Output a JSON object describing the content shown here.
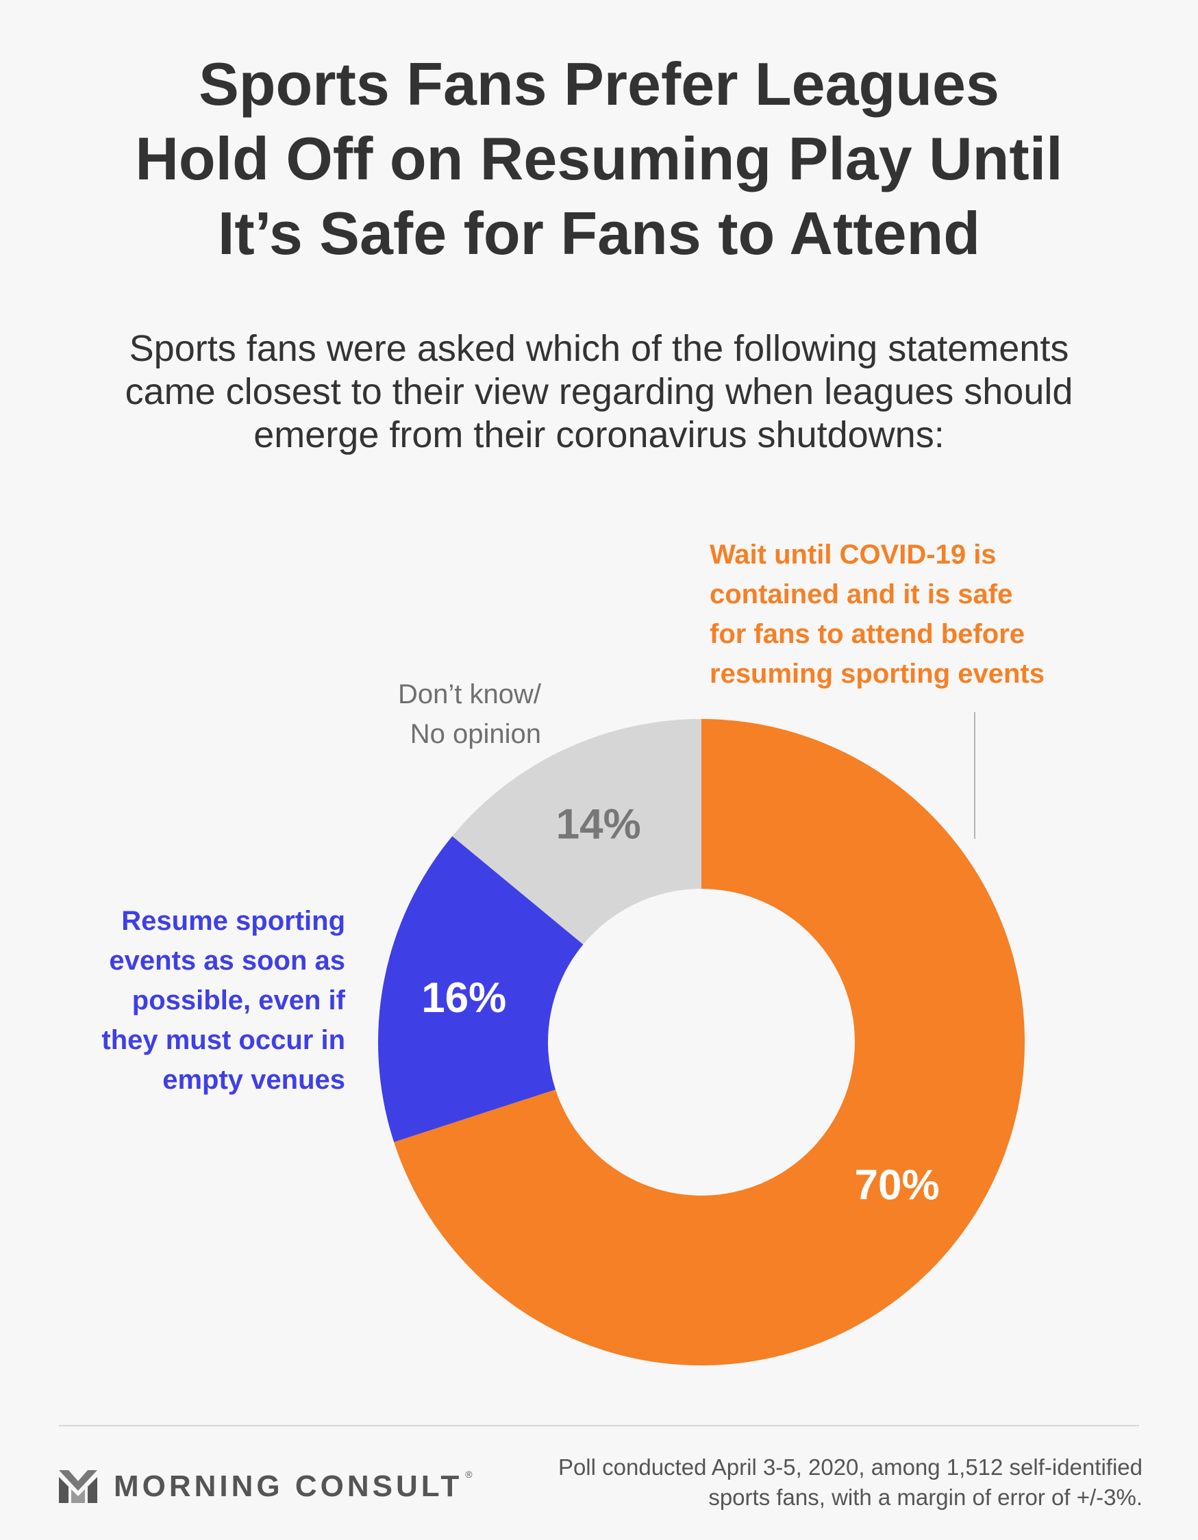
{
  "title_lines": [
    "Sports Fans Prefer Leagues",
    "Hold Off on Resuming Play Until",
    "It’s Safe for Fans to Attend"
  ],
  "subtitle_lines": [
    "Sports fans were asked which of the following statements",
    "came closest to their view regarding when leagues should",
    "emerge from their coronavirus shutdowns:"
  ],
  "chart_data": {
    "type": "pie",
    "donut": true,
    "start": "12 o'clock, clockwise",
    "slices": [
      {
        "key": "wait",
        "value": 70,
        "value_label": "70%",
        "color": "#f58025",
        "label_color": "#ffffff",
        "category_lines": [
          "Wait until COVID-19 is",
          "contained and it is safe",
          "for fans to attend before",
          "resuming sporting events"
        ],
        "category_color": "#f58025"
      },
      {
        "key": "resume",
        "value": 16,
        "value_label": "16%",
        "color": "#3f3fe6",
        "label_color": "#ffffff",
        "category_lines": [
          "Resume sporting",
          "events as soon as",
          "possible, even if",
          "they must occur in",
          "empty venues"
        ],
        "category_color": "#3f3fe6"
      },
      {
        "key": "dontknow",
        "value": 14,
        "value_label": "14%",
        "color": "#d6d6d6",
        "label_color": "#777777",
        "category_lines": [
          "Don’t know/",
          "No opinion"
        ],
        "category_color": "#6f6f6f"
      }
    ]
  },
  "footer": {
    "logo_icon": "morning-consult-m-icon",
    "brand": "MORNING CONSULT",
    "registered": "®",
    "note_lines": [
      "Poll conducted April 3-5, 2020, among 1,512 self-identified",
      "sports fans, with a margin of error of +/-3%."
    ]
  }
}
